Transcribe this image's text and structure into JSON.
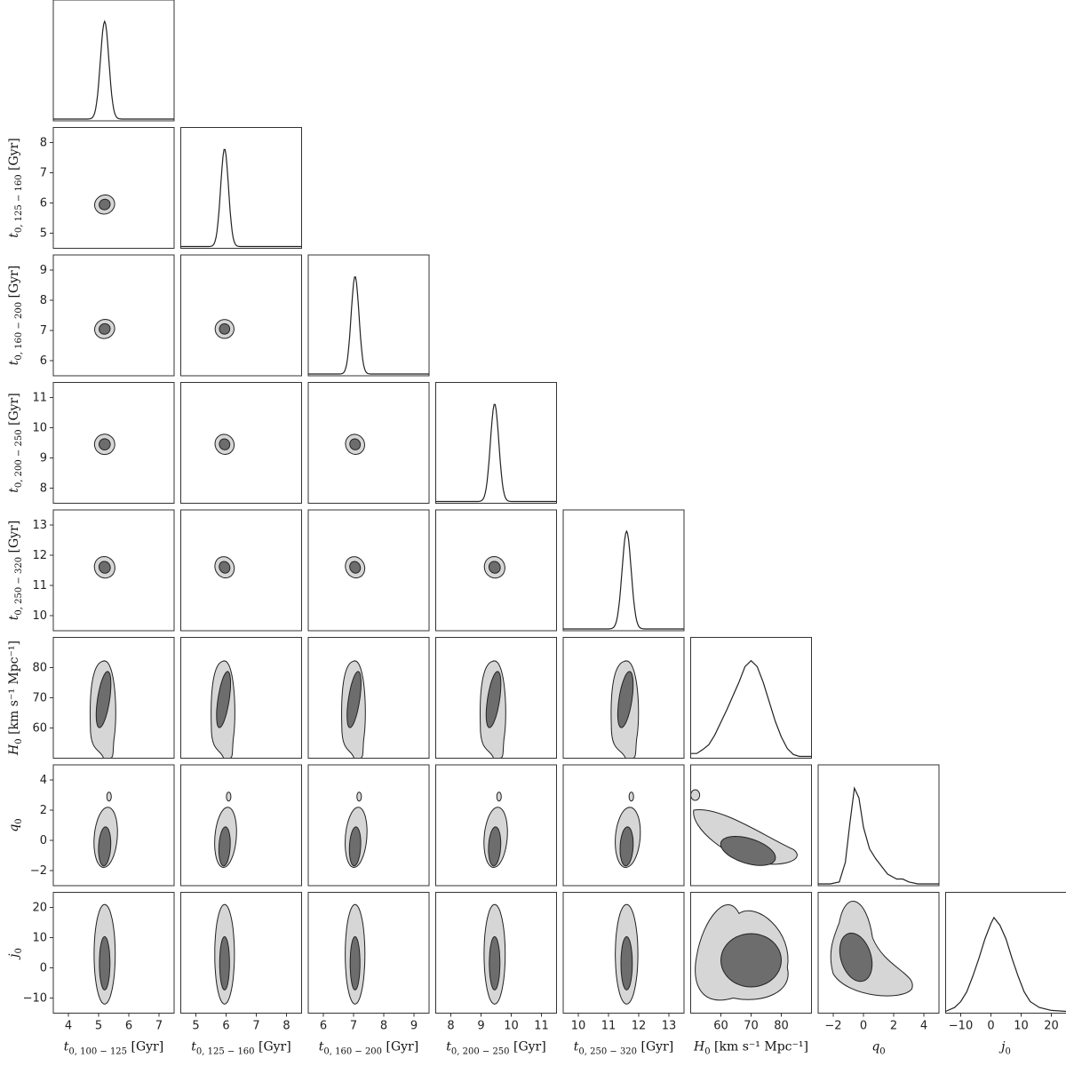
{
  "chart_data": {
    "type": "corner",
    "parameters": [
      {
        "key": "t0_100_125",
        "label_main": "t",
        "label_sub": "0, 100 − 125",
        "label_unit": " [Gyr]",
        "range": [
          3.5,
          7.5
        ],
        "ticks": [
          "4",
          "5",
          "6",
          "7"
        ],
        "tick_values": [
          4,
          5,
          6,
          7
        ],
        "mean": 5.2,
        "sigma": 0.14,
        "kind": "gauss"
      },
      {
        "key": "t0_125_160",
        "label_main": "t",
        "label_sub": "0, 125 − 160",
        "label_unit": " [Gyr]",
        "range": [
          4.5,
          8.5
        ],
        "ticks": [
          "5",
          "6",
          "7",
          "8"
        ],
        "tick_values": [
          5,
          6,
          7,
          8
        ],
        "mean": 5.95,
        "sigma": 0.13,
        "kind": "gauss"
      },
      {
        "key": "t0_160_200",
        "label_main": "t",
        "label_sub": "0, 160 − 200",
        "label_unit": " [Gyr]",
        "range": [
          5.5,
          9.5
        ],
        "ticks": [
          "6",
          "7",
          "8",
          "9"
        ],
        "tick_values": [
          6,
          7,
          8,
          9
        ],
        "mean": 7.05,
        "sigma": 0.13,
        "kind": "gauss"
      },
      {
        "key": "t0_200_250",
        "label_main": "t",
        "label_sub": "0, 200 − 250",
        "label_unit": " [Gyr]",
        "range": [
          7.5,
          11.5
        ],
        "ticks": [
          "8",
          "9",
          "10",
          "11"
        ],
        "tick_values": [
          8,
          9,
          10,
          11
        ],
        "mean": 9.45,
        "sigma": 0.14,
        "kind": "gauss"
      },
      {
        "key": "t0_250_320",
        "label_main": "t",
        "label_sub": "0, 250 − 320",
        "label_unit": " [Gyr]",
        "range": [
          9.5,
          13.5
        ],
        "ticks": [
          "10",
          "11",
          "12",
          "13"
        ],
        "tick_values": [
          10,
          11,
          12,
          13
        ],
        "mean": 11.6,
        "sigma": 0.15,
        "kind": "gauss"
      },
      {
        "key": "H0",
        "label_main": "H",
        "label_sub": "0",
        "label_unit": " [km s⁻¹ Mpc⁻¹]",
        "range": [
          50,
          90
        ],
        "ticks": [
          "60",
          "70",
          "80"
        ],
        "tick_values": [
          60,
          70,
          80
        ],
        "kind": "curve",
        "curve": [
          [
            50,
            0.03
          ],
          [
            52,
            0.03
          ],
          [
            54,
            0.07
          ],
          [
            56,
            0.12
          ],
          [
            58,
            0.22
          ],
          [
            60,
            0.35
          ],
          [
            62,
            0.48
          ],
          [
            64,
            0.62
          ],
          [
            66,
            0.76
          ],
          [
            68,
            0.92
          ],
          [
            70,
            0.98
          ],
          [
            72,
            0.92
          ],
          [
            74,
            0.76
          ],
          [
            76,
            0.56
          ],
          [
            78,
            0.36
          ],
          [
            80,
            0.2
          ],
          [
            82,
            0.08
          ],
          [
            84,
            0.02
          ],
          [
            86,
            0.0
          ],
          [
            90,
            0.0
          ]
        ]
      },
      {
        "key": "q0",
        "label_main": "q",
        "label_sub": "0",
        "label_unit": "",
        "range": [
          -3,
          5
        ],
        "ticks": [
          "−2",
          "0",
          "2",
          "4"
        ],
        "tick_values": [
          -2,
          0,
          2,
          4
        ],
        "kind": "curve",
        "curve": [
          [
            -3,
            0.0
          ],
          [
            -2.2,
            0.0
          ],
          [
            -1.6,
            0.02
          ],
          [
            -1.2,
            0.22
          ],
          [
            -0.9,
            0.62
          ],
          [
            -0.6,
            0.98
          ],
          [
            -0.3,
            0.88
          ],
          [
            0.0,
            0.58
          ],
          [
            0.4,
            0.36
          ],
          [
            0.8,
            0.26
          ],
          [
            1.2,
            0.18
          ],
          [
            1.6,
            0.1
          ],
          [
            2.2,
            0.05
          ],
          [
            2.6,
            0.05
          ],
          [
            3.0,
            0.02
          ],
          [
            3.6,
            0.0
          ],
          [
            5,
            0.0
          ]
        ]
      },
      {
        "key": "j0",
        "label_main": "j",
        "label_sub": "0",
        "label_unit": "",
        "range": [
          -15,
          25
        ],
        "ticks": [
          "−10",
          "0",
          "10",
          "20"
        ],
        "tick_values": [
          -10,
          0,
          10,
          20
        ],
        "kind": "curve",
        "curve": [
          [
            -15,
            0.0
          ],
          [
            -12,
            0.04
          ],
          [
            -10,
            0.1
          ],
          [
            -8,
            0.2
          ],
          [
            -6,
            0.36
          ],
          [
            -4,
            0.54
          ],
          [
            -2,
            0.74
          ],
          [
            0,
            0.9
          ],
          [
            1,
            0.96
          ],
          [
            3,
            0.88
          ],
          [
            5,
            0.74
          ],
          [
            7,
            0.54
          ],
          [
            9,
            0.36
          ],
          [
            11,
            0.2
          ],
          [
            13,
            0.1
          ],
          [
            16,
            0.04
          ],
          [
            20,
            0.01
          ],
          [
            25,
            0.0
          ]
        ]
      }
    ],
    "contour_colors": {
      "inner": "#6d6d6d",
      "outer": "#d6d6d6",
      "line": "#222222",
      "frame": "#333333"
    },
    "grid": false
  }
}
